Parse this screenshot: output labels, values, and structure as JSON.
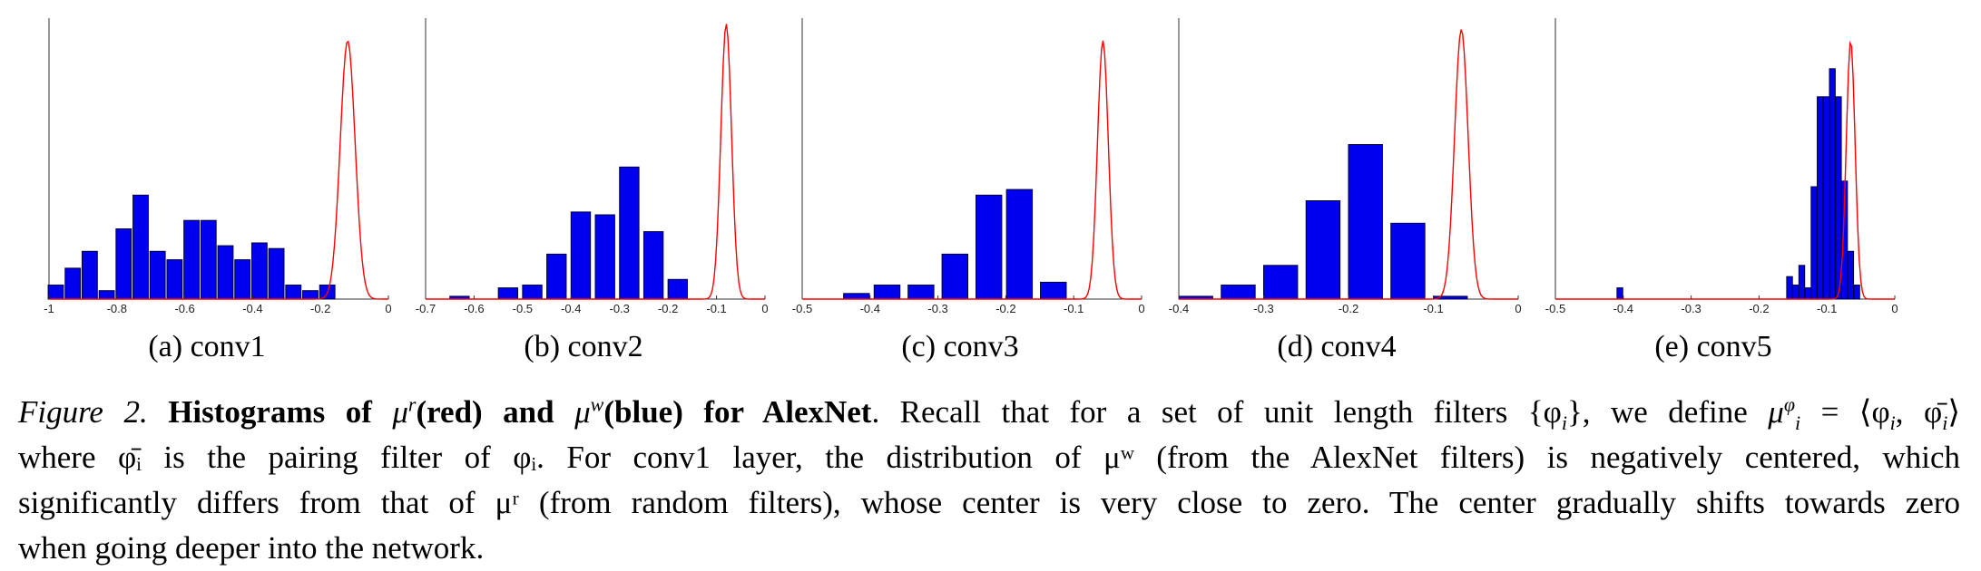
{
  "panels": [
    {
      "caption": "(a) conv1",
      "xmin": -1,
      "xmax": 0,
      "ticks": [
        -1,
        -0.8,
        -0.6,
        -0.4,
        -0.2,
        0
      ],
      "tick_labels": [
        "-1",
        "-0.8",
        "-0.6",
        "-0.4",
        "-0.2",
        "0"
      ],
      "bar_width": 0.045,
      "blue_bars": [
        [
          -0.98,
          0.05
        ],
        [
          -0.93,
          0.11
        ],
        [
          -0.88,
          0.17
        ],
        [
          -0.83,
          0.03
        ],
        [
          -0.78,
          0.25
        ],
        [
          -0.73,
          0.37
        ],
        [
          -0.68,
          0.17
        ],
        [
          -0.63,
          0.14
        ],
        [
          -0.58,
          0.28
        ],
        [
          -0.53,
          0.28
        ],
        [
          -0.48,
          0.19
        ],
        [
          -0.43,
          0.14
        ],
        [
          -0.38,
          0.2
        ],
        [
          -0.33,
          0.18
        ],
        [
          -0.28,
          0.05
        ],
        [
          -0.23,
          0.03
        ],
        [
          -0.18,
          0.05
        ]
      ],
      "red_center": -0.12,
      "red_sigma": 0.022,
      "red_peak": 0.92
    },
    {
      "caption": "(b) conv2",
      "xmin": -0.7,
      "xmax": 0,
      "ticks": [
        -0.7,
        -0.6,
        -0.5,
        -0.4,
        -0.3,
        -0.2,
        -0.1,
        0
      ],
      "tick_labels": [
        "-0.7",
        "-0.6",
        "-0.5",
        "-0.4",
        "-0.3",
        "-0.2",
        "-0.1",
        "0"
      ],
      "bar_width": 0.04,
      "blue_bars": [
        [
          -0.63,
          0.01
        ],
        [
          -0.53,
          0.04
        ],
        [
          -0.48,
          0.05
        ],
        [
          -0.43,
          0.16
        ],
        [
          -0.38,
          0.31
        ],
        [
          -0.33,
          0.3
        ],
        [
          -0.28,
          0.47
        ],
        [
          -0.23,
          0.24
        ],
        [
          -0.18,
          0.07
        ]
      ],
      "red_center": -0.08,
      "red_sigma": 0.011,
      "red_peak": 0.98
    },
    {
      "caption": "(c) conv3",
      "xmin": -0.5,
      "xmax": 0,
      "ticks": [
        -0.5,
        -0.4,
        -0.3,
        -0.2,
        -0.1,
        0
      ],
      "tick_labels": [
        "-0.5",
        "-0.4",
        "-0.3",
        "-0.2",
        "-0.1",
        "0"
      ],
      "bar_width": 0.038,
      "blue_bars": [
        [
          -0.42,
          0.02
        ],
        [
          -0.375,
          0.05
        ],
        [
          -0.325,
          0.05
        ],
        [
          -0.275,
          0.16
        ],
        [
          -0.225,
          0.37
        ],
        [
          -0.18,
          0.39
        ],
        [
          -0.13,
          0.06
        ]
      ],
      "red_center": -0.057,
      "red_sigma": 0.008,
      "red_peak": 0.92
    },
    {
      "caption": "(d) conv4",
      "xmin": -0.4,
      "xmax": 0,
      "ticks": [
        -0.4,
        -0.3,
        -0.2,
        -0.1,
        0
      ],
      "tick_labels": [
        "-0.4",
        "-0.3",
        "-0.2",
        "-0.1",
        "0"
      ],
      "bar_width": 0.04,
      "blue_bars": [
        [
          -0.38,
          0.01
        ],
        [
          -0.33,
          0.05
        ],
        [
          -0.28,
          0.12
        ],
        [
          -0.23,
          0.35
        ],
        [
          -0.18,
          0.55
        ],
        [
          -0.13,
          0.27
        ],
        [
          -0.08,
          0.01
        ]
      ],
      "red_center": -0.067,
      "red_sigma": 0.008,
      "red_peak": 0.96
    },
    {
      "caption": "(e) conv5",
      "xmin": -0.5,
      "xmax": 0,
      "ticks": [
        -0.5,
        -0.4,
        -0.3,
        -0.2,
        -0.1,
        0
      ],
      "tick_labels": [
        "-0.5",
        "-0.4",
        "-0.3",
        "-0.2",
        "-0.1",
        "0"
      ],
      "bar_width": 0.0085,
      "blue_bars": [
        [
          -0.405,
          0.04
        ],
        [
          -0.155,
          0.08
        ],
        [
          -0.146,
          0.05
        ],
        [
          -0.137,
          0.12
        ],
        [
          -0.128,
          0.04
        ],
        [
          -0.119,
          0.4
        ],
        [
          -0.11,
          0.72
        ],
        [
          -0.101,
          0.72
        ],
        [
          -0.092,
          0.82
        ],
        [
          -0.083,
          0.72
        ],
        [
          -0.074,
          0.42
        ],
        [
          -0.065,
          0.17
        ],
        [
          -0.056,
          0.05
        ]
      ],
      "red_center": -0.065,
      "red_sigma": 0.0065,
      "red_peak": 0.92
    }
  ],
  "colors": {
    "blue_fill": "#0000ee",
    "blue_stroke": "#000033",
    "red_line": "#ff0000",
    "axis": "#333333"
  },
  "caption": {
    "figure_label": "Figure 2.",
    "bold_part1": "Histograms of",
    "mu": "μ",
    "sup_r": "r",
    "bold_red": "(red) and",
    "sup_w": "w",
    "bold_blue": "(blue) for AlexNet",
    "line1_rest": ". Recall that for a set of unit length filters {φ",
    "sub_i": "i",
    "line1_tail": "}, we define",
    "sup_phi": "φ",
    "line1_end": "= ⟨φ",
    "line1_end2": ", φ̄",
    "line1_end3": "⟩",
    "line2": "where φ̄ᵢ is the pairing filter of φᵢ. For conv1 layer, the distribution of μʷ (from the AlexNet filters) is negatively centered, which",
    "line3": "significantly differs from that of μʳ (from random filters), whose center is very close to zero. The center gradually shifts towards zero",
    "line4": "when going deeper into the network."
  }
}
